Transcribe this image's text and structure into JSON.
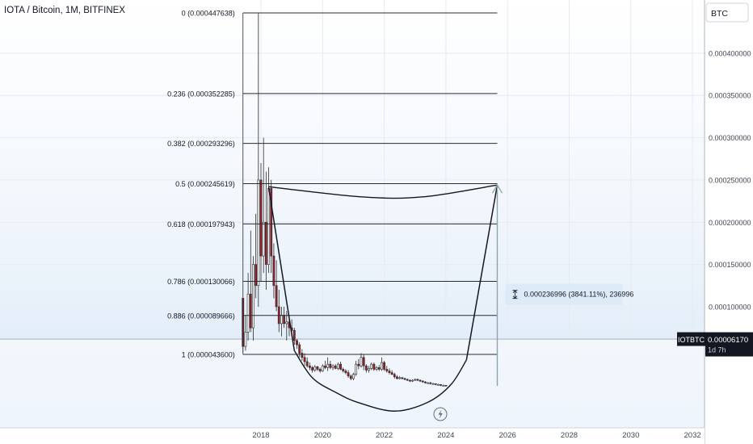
{
  "header": {
    "title": "IOTA / Bitcoin, 1M, BITFINEX",
    "currency": "BTC"
  },
  "symbol_badge": {
    "symbol": "IOTBTC",
    "price": "0.00006170",
    "countdown": "1d 7h"
  },
  "measure_label": "0.000236996 (3841.11%), 236996",
  "colors": {
    "background_top": "#ffffff",
    "background_bottom": "#d8e7f7",
    "fib_line": "#2b2b2b",
    "measure_box": "#dbe9f6",
    "measure_arrow": "#90a4ae",
    "price_badge": "#131722",
    "up_candle": "#ffffff",
    "down_candle": "#9e1b2a"
  },
  "chart_data": {
    "type": "candlestick",
    "title": "IOTA / Bitcoin, 1M, BITFINEX",
    "x_axis": {
      "type": "date",
      "range": [
        "2016-08",
        "2032-12"
      ],
      "tick_labels": [
        "2018",
        "2020",
        "2022",
        "2024",
        "2026",
        "2028",
        "2030",
        "2032"
      ]
    },
    "y_axis": {
      "unit": "BTC",
      "position": "right",
      "range": [
        -1e-05,
        0.00047
      ],
      "tick_labels": [
        "0.000050000",
        "0.000100000",
        "0.000150000",
        "0.000200000",
        "0.000250000",
        "0.000300000",
        "0.000350000",
        "0.000400000"
      ],
      "tick_values": [
        5e-05,
        0.0001,
        0.00015,
        0.0002,
        0.00025,
        0.0003,
        0.00035,
        0.0004
      ]
    },
    "grid": true,
    "fibonacci_retracement": {
      "start": "2017-06",
      "end": "2025-09",
      "levels": [
        {
          "label": "0 (0.000447638)",
          "value": 0.000447638
        },
        {
          "label": "0.236 (0.000352285)",
          "value": 0.000352285
        },
        {
          "label": "0.382 (0.000293296)",
          "value": 0.000293296
        },
        {
          "label": "0.5 (0.000245619)",
          "value": 0.000245619
        },
        {
          "label": "0.618 (0.000197943)",
          "value": 0.000197943
        },
        {
          "label": "0.786 (0.000130066)",
          "value": 0.000130066
        },
        {
          "label": "0.886 (0.000089666)",
          "value": 8.9666e-05
        },
        {
          "label": "1 (0.000043600)",
          "value": 4.36e-05
        }
      ]
    },
    "price_range_measure": {
      "from_value": 6.2e-06,
      "to_value": 0.000244,
      "date": "2025-09",
      "label": "0.000236996 (3841.11%), 236996"
    },
    "last_price": 6.17e-05,
    "drawn_path": [
      {
        "x": "2018-04",
        "y": 0.000241
      },
      {
        "x": "2019-02",
        "y": 4.8e-05
      },
      {
        "x": "2019-09",
        "y": 1.6e-05
      },
      {
        "x": "2020-06",
        "y": -1.2e-06
      },
      {
        "x": "2021-03",
        "y": -1.35e-05
      },
      {
        "x": "2022-05",
        "y": -2.35e-05
      },
      {
        "x": "2023-06",
        "y": -1.3e-05
      },
      {
        "x": "2024-03",
        "y": 8e-06
      },
      {
        "x": "2024-09",
        "y": 3.7e-05
      },
      {
        "x": "2025-09",
        "y": 0.000244
      }
    ],
    "drawn_arc": [
      {
        "x": "2018-04",
        "y": 0.000242
      },
      {
        "x": "2021-04",
        "y": 0.00023
      },
      {
        "x": "2023-04",
        "y": 0.00023
      },
      {
        "x": "2025-09",
        "y": 0.000244
      }
    ],
    "candles": [
      {
        "x": "2017-06",
        "o": 0.00011,
        "h": 0.00011,
        "l": 4.6e-05,
        "c": 5.3e-05
      },
      {
        "x": "2017-07",
        "o": 5.3e-05,
        "h": 9e-05,
        "l": 4.8e-05,
        "c": 7e-05
      },
      {
        "x": "2017-08",
        "o": 7e-05,
        "h": 0.00014,
        "l": 6e-05,
        "c": 0.000115
      },
      {
        "x": "2017-09",
        "o": 0.000115,
        "h": 0.00019,
        "l": 7e-05,
        "c": 7.5e-05
      },
      {
        "x": "2017-10",
        "o": 7.5e-05,
        "h": 0.00016,
        "l": 6e-05,
        "c": 0.00015
      },
      {
        "x": "2017-11",
        "o": 0.00015,
        "h": 0.00021,
        "l": 0.00011,
        "c": 0.000125
      },
      {
        "x": "2017-12",
        "o": 0.000125,
        "h": 0.000447,
        "l": 0.0001,
        "c": 0.00025
      },
      {
        "x": "2018-01",
        "o": 0.00025,
        "h": 0.00027,
        "l": 0.00013,
        "c": 0.00016
      },
      {
        "x": "2018-02",
        "o": 0.00016,
        "h": 0.0003,
        "l": 0.00014,
        "c": 0.0002
      },
      {
        "x": "2018-03",
        "o": 0.0002,
        "h": 0.00026,
        "l": 0.00012,
        "c": 0.00015
      },
      {
        "x": "2018-04",
        "o": 0.00015,
        "h": 0.000265,
        "l": 0.00014,
        "c": 0.00024
      },
      {
        "x": "2018-05",
        "o": 0.00024,
        "h": 0.00025,
        "l": 0.00014,
        "c": 0.00016
      },
      {
        "x": "2018-06",
        "o": 0.00016,
        "h": 0.000175,
        "l": 0.00011,
        "c": 0.000125
      },
      {
        "x": "2018-07",
        "o": 0.000125,
        "h": 0.000155,
        "l": 9.5e-05,
        "c": 0.0001
      },
      {
        "x": "2018-08",
        "o": 0.0001,
        "h": 0.00012,
        "l": 7e-05,
        "c": 8e-05
      },
      {
        "x": "2018-09",
        "o": 8e-05,
        "h": 0.0001,
        "l": 6.5e-05,
        "c": 9e-05
      },
      {
        "x": "2018-10",
        "o": 9e-05,
        "h": 0.0001,
        "l": 7.5e-05,
        "c": 8e-05
      },
      {
        "x": "2018-11",
        "o": 8e-05,
        "h": 9.5e-05,
        "l": 6e-05,
        "c": 8.2e-05
      },
      {
        "x": "2018-12",
        "o": 8.2e-05,
        "h": 9e-05,
        "l": 6.5e-05,
        "c": 7.5e-05
      },
      {
        "x": "2019-01",
        "o": 7.5e-05,
        "h": 8.5e-05,
        "l": 6.5e-05,
        "c": 7.2e-05
      },
      {
        "x": "2019-02",
        "o": 7.2e-05,
        "h": 7.5e-05,
        "l": 5.5e-05,
        "c": 6e-05
      },
      {
        "x": "2019-03",
        "o": 6e-05,
        "h": 6.2e-05,
        "l": 5e-05,
        "c": 5.5e-05
      },
      {
        "x": "2019-04",
        "o": 5.5e-05,
        "h": 5.8e-05,
        "l": 4e-05,
        "c": 4.5e-05
      },
      {
        "x": "2019-05",
        "o": 4.5e-05,
        "h": 5e-05,
        "l": 3.6e-05,
        "c": 4e-05
      },
      {
        "x": "2019-06",
        "o": 4e-05,
        "h": 4.5e-05,
        "l": 3e-05,
        "c": 3.5e-05
      },
      {
        "x": "2019-07",
        "o": 3.5e-05,
        "h": 4e-05,
        "l": 2.8e-05,
        "c": 3e-05
      },
      {
        "x": "2019-08",
        "o": 3e-05,
        "h": 3.4e-05,
        "l": 2.5e-05,
        "c": 2.8e-05
      },
      {
        "x": "2019-09",
        "o": 2.8e-05,
        "h": 3e-05,
        "l": 2.2e-05,
        "c": 2.5e-05
      },
      {
        "x": "2019-10",
        "o": 2.5e-05,
        "h": 3.1e-05,
        "l": 2.3e-05,
        "c": 2.9e-05
      },
      {
        "x": "2019-11",
        "o": 2.9e-05,
        "h": 3e-05,
        "l": 2.4e-05,
        "c": 2.6e-05
      },
      {
        "x": "2019-12",
        "o": 2.6e-05,
        "h": 2.8e-05,
        "l": 2.2e-05,
        "c": 2.4e-05
      },
      {
        "x": "2020-01",
        "o": 2.4e-05,
        "h": 3.2e-05,
        "l": 2.3e-05,
        "c": 3e-05
      },
      {
        "x": "2020-02",
        "o": 3e-05,
        "h": 3.6e-05,
        "l": 2.6e-05,
        "c": 2.8e-05
      },
      {
        "x": "2020-03",
        "o": 2.8e-05,
        "h": 4e-05,
        "l": 2.4e-05,
        "c": 3.2e-05
      },
      {
        "x": "2020-04",
        "o": 3.2e-05,
        "h": 3.6e-05,
        "l": 2.6e-05,
        "c": 2.8e-05
      },
      {
        "x": "2020-05",
        "o": 2.8e-05,
        "h": 3.2e-05,
        "l": 2.5e-05,
        "c": 3e-05
      },
      {
        "x": "2020-06",
        "o": 3e-05,
        "h": 3.2e-05,
        "l": 2.6e-05,
        "c": 2.7e-05
      },
      {
        "x": "2020-07",
        "o": 2.7e-05,
        "h": 3.4e-05,
        "l": 2.5e-05,
        "c": 3.2e-05
      },
      {
        "x": "2020-08",
        "o": 3.2e-05,
        "h": 3.5e-05,
        "l": 2.5e-05,
        "c": 2.6e-05
      },
      {
        "x": "2020-09",
        "o": 2.6e-05,
        "h": 2.8e-05,
        "l": 2.2e-05,
        "c": 2.4e-05
      },
      {
        "x": "2020-10",
        "o": 2.4e-05,
        "h": 2.6e-05,
        "l": 2e-05,
        "c": 2.2e-05
      },
      {
        "x": "2020-11",
        "o": 2.2e-05,
        "h": 2.5e-05,
        "l": 1.6e-05,
        "c": 1.8e-05
      },
      {
        "x": "2020-12",
        "o": 1.8e-05,
        "h": 2e-05,
        "l": 1.3e-05,
        "c": 1.5e-05
      },
      {
        "x": "2021-01",
        "o": 1.5e-05,
        "h": 2.2e-05,
        "l": 1.3e-05,
        "c": 2e-05
      },
      {
        "x": "2021-02",
        "o": 2e-05,
        "h": 3.6e-05,
        "l": 1.8e-05,
        "c": 3.2e-05
      },
      {
        "x": "2021-03",
        "o": 3.2e-05,
        "h": 3.8e-05,
        "l": 2.6e-05,
        "c": 3e-05
      },
      {
        "x": "2021-04",
        "o": 3e-05,
        "h": 4.5e-05,
        "l": 2.8e-05,
        "c": 4e-05
      },
      {
        "x": "2021-05",
        "o": 4e-05,
        "h": 4.4e-05,
        "l": 2.5e-05,
        "c": 3e-05
      },
      {
        "x": "2021-06",
        "o": 3e-05,
        "h": 3.2e-05,
        "l": 2.2e-05,
        "c": 2.5e-05
      },
      {
        "x": "2021-07",
        "o": 2.5e-05,
        "h": 3e-05,
        "l": 2.2e-05,
        "c": 2.7e-05
      },
      {
        "x": "2021-08",
        "o": 2.7e-05,
        "h": 3.4e-05,
        "l": 2.5e-05,
        "c": 3.2e-05
      },
      {
        "x": "2021-09",
        "o": 3.2e-05,
        "h": 3.4e-05,
        "l": 2.4e-05,
        "c": 2.6e-05
      },
      {
        "x": "2021-10",
        "o": 2.6e-05,
        "h": 3e-05,
        "l": 2.4e-05,
        "c": 2.8e-05
      },
      {
        "x": "2021-11",
        "o": 2.8e-05,
        "h": 3.1e-05,
        "l": 2.4e-05,
        "c": 2.6e-05
      },
      {
        "x": "2021-12",
        "o": 2.6e-05,
        "h": 4e-05,
        "l": 2.4e-05,
        "c": 3.4e-05
      },
      {
        "x": "2022-01",
        "o": 3.4e-05,
        "h": 3.6e-05,
        "l": 2.4e-05,
        "c": 2.6e-05
      },
      {
        "x": "2022-02",
        "o": 2.6e-05,
        "h": 3e-05,
        "l": 2.2e-05,
        "c": 2.4e-05
      },
      {
        "x": "2022-03",
        "o": 2.4e-05,
        "h": 2.7e-05,
        "l": 2e-05,
        "c": 2.2e-05
      },
      {
        "x": "2022-04",
        "o": 2.2e-05,
        "h": 2.5e-05,
        "l": 1.9e-05,
        "c": 2e-05
      },
      {
        "x": "2022-05",
        "o": 2e-05,
        "h": 2.2e-05,
        "l": 1.5e-05,
        "c": 1.7e-05
      },
      {
        "x": "2022-06",
        "o": 1.7e-05,
        "h": 1.9e-05,
        "l": 1.4e-05,
        "c": 1.5e-05
      },
      {
        "x": "2022-07",
        "o": 1.5e-05,
        "h": 1.8e-05,
        "l": 1.4e-05,
        "c": 1.6e-05
      },
      {
        "x": "2022-08",
        "o": 1.6e-05,
        "h": 1.7e-05,
        "l": 1.4e-05,
        "c": 1.5e-05
      },
      {
        "x": "2022-09",
        "o": 1.5e-05,
        "h": 1.6e-05,
        "l": 1.3e-05,
        "c": 1.4e-05
      },
      {
        "x": "2022-10",
        "o": 1.4e-05,
        "h": 1.5e-05,
        "l": 1.2e-05,
        "c": 1.3e-05
      },
      {
        "x": "2022-11",
        "o": 1.3e-05,
        "h": 1.4e-05,
        "l": 1.1e-05,
        "c": 1.2e-05
      },
      {
        "x": "2022-12",
        "o": 1.2e-05,
        "h": 1.4e-05,
        "l": 1.1e-05,
        "c": 1.3e-05
      },
      {
        "x": "2023-01",
        "o": 1.3e-05,
        "h": 1.5e-05,
        "l": 1.2e-05,
        "c": 1.4e-05
      },
      {
        "x": "2023-02",
        "o": 1.4e-05,
        "h": 1.5e-05,
        "l": 1.2e-05,
        "c": 1.3e-05
      },
      {
        "x": "2023-03",
        "o": 1.3e-05,
        "h": 1.4e-05,
        "l": 1.1e-05,
        "c": 1.2e-05
      },
      {
        "x": "2023-04",
        "o": 1.2e-05,
        "h": 1.3e-05,
        "l": 1e-05,
        "c": 1.1e-05
      },
      {
        "x": "2023-05",
        "o": 1.1e-05,
        "h": 1.2e-05,
        "l": 9e-06,
        "c": 1e-05
      },
      {
        "x": "2023-06",
        "o": 1e-05,
        "h": 1.1e-05,
        "l": 9e-06,
        "c": 1e-05
      },
      {
        "x": "2023-07",
        "o": 1e-05,
        "h": 1.1e-05,
        "l": 8e-06,
        "c": 9e-06
      },
      {
        "x": "2023-08",
        "o": 9e-06,
        "h": 1e-05,
        "l": 8e-06,
        "c": 9e-06
      },
      {
        "x": "2023-09",
        "o": 9e-06,
        "h": 9e-06,
        "l": 7e-06,
        "c": 8e-06
      },
      {
        "x": "2023-10",
        "o": 8e-06,
        "h": 9e-06,
        "l": 7e-06,
        "c": 8e-06
      },
      {
        "x": "2023-11",
        "o": 8e-06,
        "h": 8e-06,
        "l": 6e-06,
        "c": 7e-06
      },
      {
        "x": "2023-12",
        "o": 7e-06,
        "h": 8e-06,
        "l": 6e-06,
        "c": 7e-06
      },
      {
        "x": "2024-01",
        "o": 7e-06,
        "h": 7e-06,
        "l": 6e-06,
        "c": 6.2e-06
      }
    ]
  }
}
